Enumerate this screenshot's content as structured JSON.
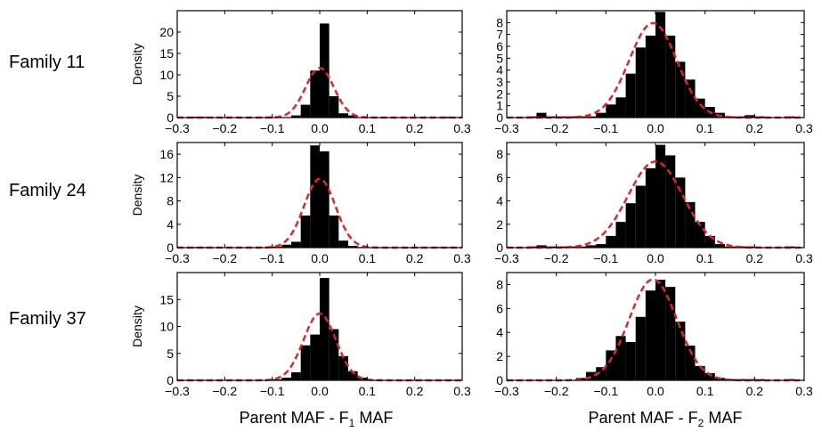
{
  "figure": {
    "row_labels": [
      "Family 11",
      "Family 24",
      "Family 37"
    ],
    "column_xlabels": [
      {
        "main": "Parent MAF - F",
        "sub": "1",
        "tail": " MAF"
      },
      {
        "main": "Parent MAF - F",
        "sub": "2",
        "tail": " MAF"
      }
    ]
  },
  "colors": {
    "bar": "#000000",
    "fit_curve": "#e8232a"
  },
  "chart_data": [
    {
      "type": "bar",
      "row": "Family 11",
      "column": "F1",
      "ylabel": "Density",
      "xlim": [
        -0.3,
        0.3
      ],
      "ylim": [
        0,
        25
      ],
      "xticks": [
        -0.3,
        -0.2,
        -0.1,
        0.0,
        0.1,
        0.2,
        0.3
      ],
      "xtick_labels": [
        "−0.3",
        "−0.2",
        "−0.1",
        "0.0",
        "0.1",
        "0.2",
        "0.3"
      ],
      "yticks": [
        0,
        5,
        10,
        15,
        20
      ],
      "bin_edges": [
        -0.3,
        -0.28,
        -0.26,
        -0.24,
        -0.22,
        -0.2,
        -0.18,
        -0.16,
        -0.14,
        -0.12,
        -0.1,
        -0.08,
        -0.06,
        -0.04,
        -0.02,
        0.0,
        0.02,
        0.04,
        0.06,
        0.08,
        0.1,
        0.12,
        0.14,
        0.16,
        0.18,
        0.2,
        0.22,
        0.24,
        0.26,
        0.28,
        0.3
      ],
      "values": [
        0,
        0.2,
        0.2,
        0,
        0,
        0,
        0,
        0,
        0,
        0,
        0,
        0,
        0.5,
        3,
        11,
        22,
        5,
        1,
        0.5,
        0,
        0,
        0,
        0,
        0,
        0,
        0,
        0,
        0,
        0.2,
        0
      ],
      "fit": {
        "dist": "normal",
        "mean": 0.0,
        "sd": 0.03
      }
    },
    {
      "type": "bar",
      "row": "Family 11",
      "column": "F2",
      "ylabel": "",
      "xlim": [
        -0.3,
        0.3
      ],
      "ylim": [
        0,
        9
      ],
      "xticks": [
        -0.3,
        -0.2,
        -0.1,
        0.0,
        0.1,
        0.2,
        0.3
      ],
      "xtick_labels": [
        "−0.3",
        "−0.2",
        "−0.1",
        "0.0",
        "0.1",
        "0.2",
        "0.3"
      ],
      "yticks": [
        0,
        1,
        2,
        3,
        4,
        5,
        6,
        7,
        8
      ],
      "bin_edges": [
        -0.3,
        -0.28,
        -0.26,
        -0.24,
        -0.22,
        -0.2,
        -0.18,
        -0.16,
        -0.14,
        -0.12,
        -0.1,
        -0.08,
        -0.06,
        -0.04,
        -0.02,
        0.0,
        0.02,
        0.04,
        0.06,
        0.08,
        0.1,
        0.12,
        0.14,
        0.16,
        0.18,
        0.2,
        0.22,
        0.24,
        0.26,
        0.28,
        0.3
      ],
      "values": [
        0,
        0,
        0.1,
        0.4,
        0.1,
        0.1,
        0.1,
        0.1,
        0.1,
        0.4,
        1.1,
        1.7,
        3.7,
        5.9,
        6.9,
        8.9,
        6.9,
        4.7,
        3.2,
        1.6,
        0.9,
        0.4,
        0.1,
        0.1,
        0.2,
        0.1,
        0,
        0,
        0.1,
        0
      ],
      "fit": {
        "dist": "normal",
        "mean": -0.005,
        "sd": 0.048
      }
    },
    {
      "type": "bar",
      "row": "Family 24",
      "column": "F1",
      "ylabel": "Density",
      "xlim": [
        -0.3,
        0.3
      ],
      "ylim": [
        0,
        18
      ],
      "xticks": [
        -0.3,
        -0.2,
        -0.1,
        0.0,
        0.1,
        0.2,
        0.3
      ],
      "xtick_labels": [
        "−0.3",
        "−0.2",
        "−0.1",
        "0.0",
        "0.1",
        "0.2",
        "0.3"
      ],
      "yticks": [
        0,
        4,
        8,
        12,
        16
      ],
      "bin_edges": [
        -0.3,
        -0.28,
        -0.26,
        -0.24,
        -0.22,
        -0.2,
        -0.18,
        -0.16,
        -0.14,
        -0.12,
        -0.1,
        -0.08,
        -0.06,
        -0.04,
        -0.02,
        0.0,
        0.02,
        0.04,
        0.06,
        0.08,
        0.1,
        0.12,
        0.14,
        0.16,
        0.18,
        0.2,
        0.22,
        0.24,
        0.26,
        0.28,
        0.3
      ],
      "values": [
        0,
        0.1,
        0.1,
        0,
        0,
        0,
        0,
        0,
        0,
        0,
        0.2,
        0.5,
        1.0,
        5.5,
        17.5,
        16.5,
        5.5,
        1.2,
        0.3,
        0.1,
        0,
        0,
        0,
        0,
        0,
        0,
        0,
        0.1,
        0.1,
        0
      ],
      "fit": {
        "dist": "normal",
        "mean": 0.0,
        "sd": 0.033
      }
    },
    {
      "type": "bar",
      "row": "Family 24",
      "column": "F2",
      "ylabel": "",
      "xlim": [
        -0.3,
        0.3
      ],
      "ylim": [
        0,
        9
      ],
      "xticks": [
        -0.3,
        -0.2,
        -0.1,
        0.0,
        0.1,
        0.2,
        0.3
      ],
      "xtick_labels": [
        "−0.3",
        "−0.2",
        "−0.1",
        "0.0",
        "0.1",
        "0.2",
        "0.3"
      ],
      "yticks": [
        0,
        2,
        4,
        6,
        8
      ],
      "bin_edges": [
        -0.3,
        -0.28,
        -0.26,
        -0.24,
        -0.22,
        -0.2,
        -0.18,
        -0.16,
        -0.14,
        -0.12,
        -0.1,
        -0.08,
        -0.06,
        -0.04,
        -0.02,
        0.0,
        0.02,
        0.04,
        0.06,
        0.08,
        0.1,
        0.12,
        0.14,
        0.16,
        0.18,
        0.2,
        0.22,
        0.24,
        0.26,
        0.28,
        0.3
      ],
      "values": [
        0,
        0,
        0.1,
        0.2,
        0.1,
        0.1,
        0.1,
        0.1,
        0.2,
        0.3,
        1.0,
        2.2,
        3.8,
        5.3,
        6.8,
        8.8,
        7.9,
        6.0,
        3.9,
        2.2,
        1.0,
        0.3,
        0.1,
        0.1,
        0.1,
        0,
        0,
        0,
        0.1,
        0
      ],
      "fit": {
        "dist": "normal",
        "mean": 0.0,
        "sd": 0.055
      }
    },
    {
      "type": "bar",
      "row": "Family 37",
      "column": "F1",
      "ylabel": "Density",
      "xlim": [
        -0.3,
        0.3
      ],
      "ylim": [
        0,
        20
      ],
      "xticks": [
        -0.3,
        -0.2,
        -0.1,
        0.0,
        0.1,
        0.2,
        0.3
      ],
      "xtick_labels": [
        "−0.3",
        "−0.2",
        "−0.1",
        "0.0",
        "0.1",
        "0.2",
        "0.3"
      ],
      "yticks": [
        0,
        5,
        10,
        15
      ],
      "bin_edges": [
        -0.3,
        -0.28,
        -0.26,
        -0.24,
        -0.22,
        -0.2,
        -0.18,
        -0.16,
        -0.14,
        -0.12,
        -0.1,
        -0.08,
        -0.06,
        -0.04,
        -0.02,
        0.0,
        0.02,
        0.04,
        0.06,
        0.08,
        0.1,
        0.12,
        0.14,
        0.16,
        0.18,
        0.2,
        0.22,
        0.24,
        0.26,
        0.28,
        0.3
      ],
      "values": [
        0,
        0.1,
        0.1,
        0,
        0,
        0,
        0,
        0,
        0,
        0,
        0.2,
        0.5,
        1.5,
        6.5,
        8.5,
        19,
        9.5,
        4.5,
        1.7,
        0.5,
        0.1,
        0,
        0,
        0,
        0,
        0,
        0,
        0,
        0.1,
        0
      ],
      "fit": {
        "dist": "normal",
        "mean": 0.0,
        "sd": 0.034
      }
    },
    {
      "type": "bar",
      "row": "Family 37",
      "column": "F2",
      "ylabel": "",
      "xlim": [
        -0.3,
        0.3
      ],
      "ylim": [
        0,
        9
      ],
      "xticks": [
        -0.3,
        -0.2,
        -0.1,
        0.0,
        0.1,
        0.2,
        0.3
      ],
      "xtick_labels": [
        "−0.3",
        "−0.2",
        "−0.1",
        "0.0",
        "0.1",
        "0.2",
        "0.3"
      ],
      "yticks": [
        0,
        2,
        4,
        6,
        8
      ],
      "bin_edges": [
        -0.3,
        -0.28,
        -0.26,
        -0.24,
        -0.22,
        -0.2,
        -0.18,
        -0.16,
        -0.14,
        -0.12,
        -0.1,
        -0.08,
        -0.06,
        -0.04,
        -0.02,
        0.0,
        0.02,
        0.04,
        0.06,
        0.08,
        0.1,
        0.12,
        0.14,
        0.16,
        0.18,
        0.2,
        0.22,
        0.24,
        0.26,
        0.28,
        0.3
      ],
      "values": [
        0,
        0,
        0,
        0,
        0,
        0,
        0,
        0.2,
        0.7,
        1.1,
        2.5,
        3.7,
        3.2,
        5.3,
        7.5,
        8.4,
        7.8,
        4.9,
        2.9,
        1.2,
        0.6,
        0.2,
        0.1,
        0.1,
        0.1,
        0.1,
        0,
        0,
        0.1,
        0
      ],
      "fit": {
        "dist": "normal",
        "mean": -0.005,
        "sd": 0.048
      }
    }
  ]
}
